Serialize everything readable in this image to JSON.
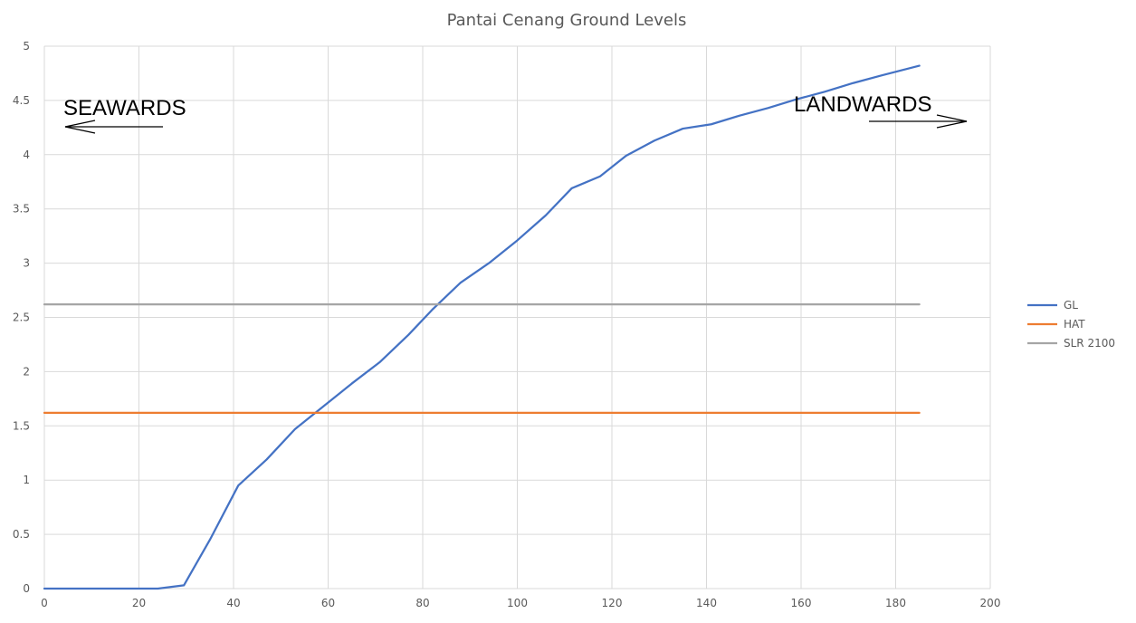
{
  "chart_data": {
    "type": "line",
    "title": "Pantai Cenang Ground Levels",
    "xlabel": "",
    "ylabel": "",
    "xlim": [
      0,
      200
    ],
    "ylim": [
      0,
      5
    ],
    "x_ticks": [
      0,
      20,
      40,
      60,
      80,
      100,
      120,
      140,
      160,
      180,
      200
    ],
    "y_ticks": [
      0,
      0.5,
      1,
      1.5,
      2,
      2.5,
      3,
      3.5,
      4,
      4.5,
      5
    ],
    "x_tick_labels": [
      "0",
      "20",
      "40",
      "60",
      "80",
      "100",
      "120",
      "140",
      "160",
      "180",
      "200"
    ],
    "y_tick_labels": [
      "0",
      "0.5",
      "1",
      "1.5",
      "2",
      "2.5",
      "3",
      "3.5",
      "4",
      "4.5",
      "5"
    ],
    "grid": true,
    "legend_position": "right",
    "series": [
      {
        "name": "GL",
        "color": "#4472c4",
        "points": [
          [
            0,
            0
          ],
          [
            6,
            0
          ],
          [
            12,
            0
          ],
          [
            18,
            0
          ],
          [
            24,
            0
          ],
          [
            29.5,
            0.03
          ],
          [
            35,
            0.45
          ],
          [
            41,
            0.95
          ],
          [
            47,
            1.19
          ],
          [
            53,
            1.47
          ],
          [
            59,
            1.68
          ],
          [
            65,
            1.89
          ],
          [
            71,
            2.09
          ],
          [
            77,
            2.34
          ],
          [
            82,
            2.57
          ],
          [
            88,
            2.82
          ],
          [
            94,
            3.0
          ],
          [
            100,
            3.21
          ],
          [
            106,
            3.44
          ],
          [
            111.5,
            3.69
          ],
          [
            117.5,
            3.8
          ],
          [
            123,
            3.99
          ],
          [
            129,
            4.13
          ],
          [
            135,
            4.24
          ],
          [
            141,
            4.28
          ],
          [
            147,
            4.36
          ],
          [
            153,
            4.43
          ],
          [
            159,
            4.51
          ],
          [
            165,
            4.58
          ],
          [
            171,
            4.66
          ],
          [
            177,
            4.73
          ],
          [
            185,
            4.82
          ]
        ]
      },
      {
        "name": "HAT",
        "color": "#ed7d31",
        "points": [
          [
            0,
            1.62
          ],
          [
            185,
            1.62
          ]
        ]
      },
      {
        "name": "SLR 2100",
        "color": "#a5a5a5",
        "points": [
          [
            0,
            2.62
          ],
          [
            185,
            2.62
          ]
        ]
      }
    ],
    "annotations": {
      "seawards": "SEAWARDS",
      "landwards": "LANDWARDS"
    }
  },
  "colors": {
    "gridline": "#d9d9d9",
    "text": "#595959"
  }
}
